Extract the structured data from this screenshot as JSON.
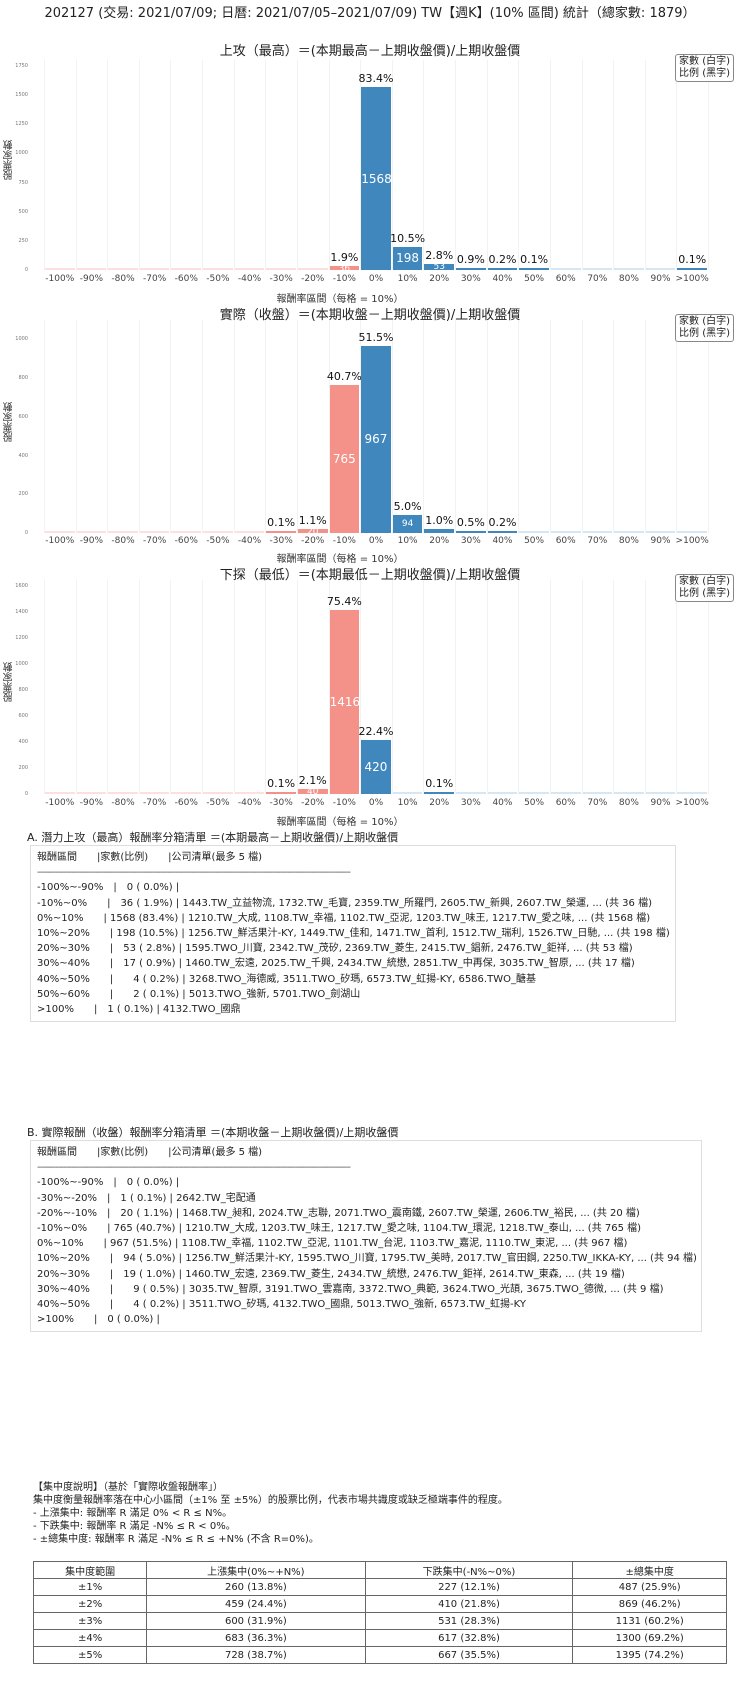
{
  "header": {
    "title": "202127 (交易: 2021/07/09; 日曆: 2021/07/05–2021/07/09) TW【週K】(10% 區間) 統計（總家數: 1879）"
  },
  "common": {
    "x_ticks": [
      "-100%",
      "-90%",
      "-80%",
      "-70%",
      "-60%",
      "-50%",
      "-40%",
      "-30%",
      "-20%",
      "-10%",
      "0%",
      "10%",
      "20%",
      "30%",
      "40%",
      "50%",
      "60%",
      "70%",
      "80%",
      "90%",
      ">100%"
    ],
    "xlabel": "報酬率區間（每格 = 10%）",
    "ylabel": "股票家數",
    "legend_line1": "家數 (白字)",
    "legend_line2": "比例 (黑字)",
    "colors": {
      "negative": "#f4928a",
      "positive": "#3f87bd"
    }
  },
  "chart_data": [
    {
      "type": "bar",
      "title": "上攻（最高）＝(本期最高－上期收盤價)/上期收盤價",
      "xlabel": "報酬率區間（每格 = 10%）",
      "ylabel": "股票家數",
      "categories": [
        "-100%",
        "-90%",
        "-80%",
        "-70%",
        "-60%",
        "-50%",
        "-40%",
        "-30%",
        "-20%",
        "-10%",
        "0%",
        "10%",
        "20%",
        "30%",
        "40%",
        "50%",
        "60%",
        "70%",
        "80%",
        "90%",
        ">100%"
      ],
      "values": [
        0,
        0,
        0,
        0,
        0,
        0,
        0,
        0,
        0,
        36,
        1568,
        198,
        53,
        17,
        4,
        2,
        0,
        0,
        0,
        0,
        1
      ],
      "percent_labels": [
        "",
        "",
        "",
        "",
        "",
        "",
        "",
        "",
        "",
        "1.9%",
        "83.4%",
        "10.5%",
        "2.8%",
        "0.9%",
        "0.2%",
        "0.1%",
        "",
        "",
        "",
        "",
        "0.1%"
      ],
      "yticks": [
        0,
        250,
        500,
        750,
        1000,
        1250,
        1500,
        1750
      ],
      "ylim": [
        0,
        1800
      ],
      "grid": true,
      "legend_position": "upper right"
    },
    {
      "type": "bar",
      "title": "實際（收盤）＝(本期收盤－上期收盤價)/上期收盤價",
      "xlabel": "報酬率區間（每格 = 10%）",
      "ylabel": "股票家數",
      "categories": [
        "-100%",
        "-90%",
        "-80%",
        "-70%",
        "-60%",
        "-50%",
        "-40%",
        "-30%",
        "-20%",
        "-10%",
        "0%",
        "10%",
        "20%",
        "30%",
        "40%",
        "50%",
        "60%",
        "70%",
        "80%",
        "90%",
        ">100%"
      ],
      "values": [
        0,
        0,
        0,
        0,
        0,
        0,
        0,
        1,
        20,
        765,
        967,
        94,
        19,
        9,
        4,
        0,
        0,
        0,
        0,
        0,
        0
      ],
      "percent_labels": [
        "",
        "",
        "",
        "",
        "",
        "",
        "",
        "0.1%",
        "1.1%",
        "40.7%",
        "51.5%",
        "5.0%",
        "1.0%",
        "0.5%",
        "0.2%",
        "",
        "",
        "",
        "",
        "",
        ""
      ],
      "yticks": [
        0,
        200,
        400,
        600,
        800,
        1000
      ],
      "ylim": [
        0,
        1100
      ],
      "grid": true,
      "legend_position": "upper right"
    },
    {
      "type": "bar",
      "title": "下探（最低）＝(本期最低－上期收盤價)/上期收盤價",
      "xlabel": "報酬率區間（每格 = 10%）",
      "ylabel": "股票家數",
      "categories": [
        "-100%",
        "-90%",
        "-80%",
        "-70%",
        "-60%",
        "-50%",
        "-40%",
        "-30%",
        "-20%",
        "-10%",
        "0%",
        "10%",
        "20%",
        "30%",
        "40%",
        "50%",
        "60%",
        "70%",
        "80%",
        "90%",
        ">100%"
      ],
      "values": [
        0,
        0,
        0,
        0,
        0,
        0,
        0,
        1,
        40,
        1416,
        420,
        0,
        1,
        0,
        0,
        0,
        0,
        0,
        0,
        0,
        0
      ],
      "percent_labels": [
        "",
        "",
        "",
        "",
        "",
        "",
        "",
        "0.1%",
        "2.1%",
        "75.4%",
        "22.4%",
        "",
        "0.1%",
        "",
        "",
        "",
        "",
        "",
        "",
        "",
        ""
      ],
      "yticks": [
        0,
        200,
        400,
        600,
        800,
        1000,
        1200,
        1400,
        1600
      ],
      "ylim": [
        0,
        1650
      ],
      "grid": true,
      "legend_position": "upper right"
    }
  ],
  "list_a": {
    "title": "A. 潛力上攻（最高）報酬率分箱清單 ＝(本期最高－上期收盤價)/上期收盤價",
    "header": "報酬區間　　|家數(比例)　　|公司清單(最多 5 檔)",
    "separator": "------------------------------------------------------------------------------------------------------------------------",
    "rows": [
      "-100%~-90%　|　0 ( 0.0%) |",
      "-10%~0%　　|　36 ( 1.9%) | 1443.TW_立益物流, 1732.TW_毛寶, 2359.TW_所羅門, 2605.TW_新興, 2607.TW_榮運, ... (共 36 檔)",
      "0%~10%　　| 1568 (83.4%) | 1210.TW_大成, 1108.TW_幸福, 1102.TW_亞泥, 1203.TW_味王, 1217.TW_愛之味, ... (共 1568 檔)",
      "10%~20%　　| 198 (10.5%) | 1256.TW_鮮活果汁-KY, 1449.TW_佳和, 1471.TW_首利, 1512.TW_瑞利, 1526.TW_日馳, ... (共 198 檔)",
      "20%~30%　　|　53 ( 2.8%) | 1595.TWO_川寶, 2342.TW_茂矽, 2369.TW_菱生, 2415.TW_錩新, 2476.TW_鉅祥, ... (共 53 檔)",
      "30%~40%　　|　17 ( 0.9%) | 1460.TW_宏遠, 2025.TW_千興, 2434.TW_統懋, 2851.TW_中再保, 3035.TW_智原, ... (共 17 檔)",
      "40%~50%　　|　　4 ( 0.2%) | 3268.TWO_海德威, 3511.TWO_矽瑪, 6573.TW_虹揚-KY, 6586.TWO_醣基",
      "50%~60%　　|　　2 ( 0.1%) | 5013.TWO_強新, 5701.TWO_劍湖山",
      ">100%　　|　1 ( 0.1%) | 4132.TWO_國鼎"
    ]
  },
  "list_b": {
    "title": "B. 實際報酬（收盤）報酬率分箱清單 ＝(本期收盤－上期收盤價)/上期收盤價",
    "header": "報酬區間　　|家數(比例)　　|公司清單(最多 5 檔)",
    "separator": "------------------------------------------------------------------------------------------------------------------------",
    "rows": [
      "-100%~-90%　|　0 ( 0.0%) |",
      "-30%~-20%　|　1 ( 0.1%) | 2642.TW_宅配通",
      "-20%~-10%　|　20 ( 1.1%) | 1468.TW_昶和, 2024.TW_志聯, 2071.TWO_震南鐵, 2607.TW_榮運, 2606.TW_裕民, ... (共 20 檔)",
      "-10%~0%　　| 765 (40.7%) | 1210.TW_大成, 1203.TW_味王, 1217.TW_愛之味, 1104.TW_環泥, 1218.TW_泰山, ... (共 765 檔)",
      "0%~10%　　| 967 (51.5%) | 1108.TW_幸福, 1102.TW_亞泥, 1101.TW_台泥, 1103.TW_嘉泥, 1110.TW_東泥, ... (共 967 檔)",
      "10%~20%　　|　94 ( 5.0%) | 1256.TW_鮮活果汁-KY, 1595.TWO_川寶, 1795.TW_美時, 2017.TW_官田鋼, 2250.TW_IKKA-KY, ... (共 94 檔)",
      "20%~30%　　|　19 ( 1.0%) | 1460.TW_宏遠, 2369.TW_菱生, 2434.TW_統懋, 2476.TW_鉅祥, 2614.TW_東森, ... (共 19 檔)",
      "30%~40%　　|　　9 ( 0.5%) | 3035.TW_智原, 3191.TWO_雲嘉南, 3372.TWO_典範, 3624.TWO_光頡, 3675.TWO_德微, ... (共 9 檔)",
      "40%~50%　　|　　4 ( 0.2%) | 3511.TWO_矽瑪, 4132.TWO_國鼎, 5013.TWO_強新, 6573.TW_虹揚-KY",
      ">100%　　|　0 ( 0.0%) |"
    ]
  },
  "notes": {
    "heading": "【集中度說明】（基於「實際收盤報酬率」）",
    "desc": "集中度衡量報酬率落在中心小區間（±1% 至 ±5%）的股票比例，代表市場共識度或缺乏極端事件的程度。",
    "items": [
      " - 上漲集中: 報酬率 R 滿足 0% < R ≤ N%。",
      " - 下跌集中: 報酬率 R 滿足 -N% ≤ R < 0%。",
      " - ±總集中度: 報酬率 R 滿足 -N% ≤ R ≤ +N% (不含 R=0%)。"
    ]
  },
  "concentration_table": {
    "headers": [
      "集中度範圍",
      "上漲集中(0%~+N%)",
      "下跌集中(-N%~0%)",
      "±總集中度"
    ],
    "rows": [
      [
        "±1%",
        "260 (13.8%)",
        "227 (12.1%)",
        "487 (25.9%)"
      ],
      [
        "±2%",
        "459 (24.4%)",
        "410 (21.8%)",
        "869 (46.2%)"
      ],
      [
        "±3%",
        "600 (31.9%)",
        "531 (28.3%)",
        "1131 (60.2%)"
      ],
      [
        "±4%",
        "683 (36.3%)",
        "617 (32.8%)",
        "1300 (69.2%)"
      ],
      [
        "±5%",
        "728 (38.7%)",
        "667 (35.5%)",
        "1395 (74.2%)"
      ]
    ]
  }
}
